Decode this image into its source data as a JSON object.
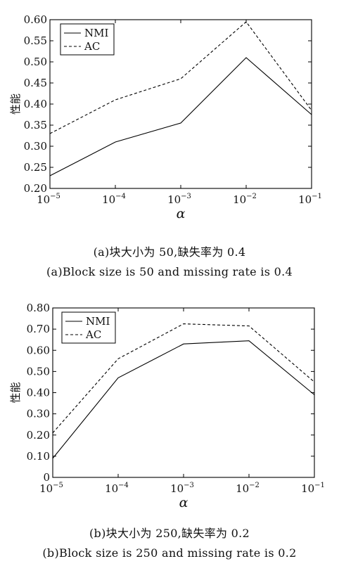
{
  "chart_data": [
    {
      "type": "line",
      "x": [
        "10^-5",
        "10^-4",
        "10^-3",
        "10^-2",
        "10^-1"
      ],
      "xtick_labels": [
        {
          "base": "10",
          "exp": "−5"
        },
        {
          "base": "10",
          "exp": "−4"
        },
        {
          "base": "10",
          "exp": "−3"
        },
        {
          "base": "10",
          "exp": "−2"
        },
        {
          "base": "10",
          "exp": "−1"
        }
      ],
      "xlabel": "α",
      "ylabel": "性能",
      "ylim": [
        0.2,
        0.6
      ],
      "yticks": [
        "0.20",
        "0.25",
        "0.30",
        "0.35",
        "0.40",
        "0.45",
        "0.50",
        "0.55",
        "0.60"
      ],
      "series": [
        {
          "name": "NMI",
          "values": [
            0.23,
            0.31,
            0.355,
            0.51,
            0.375
          ]
        },
        {
          "name": "AC",
          "values": [
            0.33,
            0.41,
            0.46,
            0.595,
            0.385
          ]
        }
      ],
      "legend": "top-left",
      "grid": false,
      "caption_cn": "(a)块大小为 50,缺失率为 0.4",
      "caption_en": "(a)Block size is 50 and missing rate is 0.4"
    },
    {
      "type": "line",
      "x": [
        "10^-5",
        "10^-4",
        "10^-3",
        "10^-2",
        "10^-1"
      ],
      "xtick_labels": [
        {
          "base": "10",
          "exp": "−5"
        },
        {
          "base": "10",
          "exp": "−4"
        },
        {
          "base": "10",
          "exp": "−3"
        },
        {
          "base": "10",
          "exp": "−2"
        },
        {
          "base": "10",
          "exp": "−1"
        }
      ],
      "xlabel": "α",
      "ylabel": "性能",
      "ylim": [
        0,
        0.8
      ],
      "yticks": [
        "0",
        "0.10",
        "0.20",
        "0.30",
        "0.40",
        "0.50",
        "0.60",
        "0.70",
        "0.80"
      ],
      "series": [
        {
          "name": "NMI",
          "values": [
            0.09,
            0.47,
            0.63,
            0.645,
            0.39
          ]
        },
        {
          "name": "AC",
          "values": [
            0.21,
            0.56,
            0.725,
            0.715,
            0.45
          ]
        }
      ],
      "legend": "top-left",
      "grid": false,
      "caption_cn": "(b)块大小为 250,缺失率为 0.2",
      "caption_en": "(b)Block size is 250 and missing rate is 0.2"
    }
  ]
}
